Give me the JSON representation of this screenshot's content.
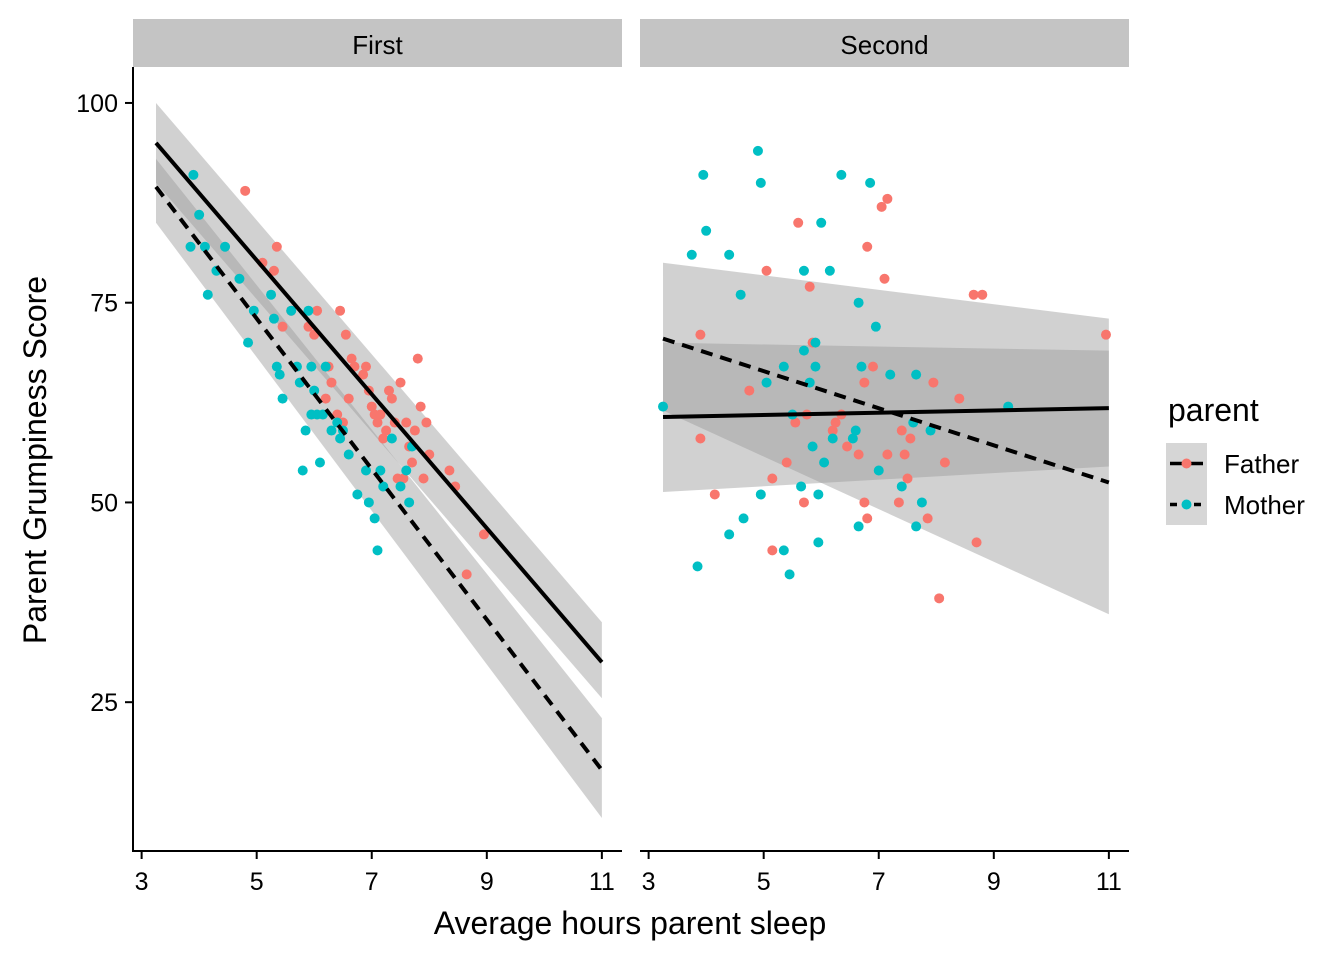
{
  "chart_data": {
    "type": "scatter",
    "xlabel": "Average hours parent sleep",
    "ylabel": "Parent Grumpiness Score",
    "xlim": [
      2.85,
      11.35
    ],
    "ylim": [
      6.5,
      104.5
    ],
    "x_ticks": [
      3,
      5,
      7,
      9,
      11
    ],
    "y_ticks": [
      25,
      50,
      75,
      100
    ],
    "grid": false,
    "legend": {
      "title": "parent",
      "placement": "right",
      "entries": [
        {
          "label": "Father",
          "color": "#F8766D",
          "linetype": "solid"
        },
        {
          "label": "Mother",
          "color": "#00BFC4",
          "linetype": "dashed"
        }
      ]
    },
    "colors": {
      "Father": "#F8766D",
      "Mother": "#00BFC4",
      "line": "#000000",
      "band": "#999999",
      "strip": "#c4c4c4"
    },
    "panels": [
      {
        "label": "First",
        "points": {
          "Father": [
            [
              4.8,
              89
            ],
            [
              5.1,
              80
            ],
            [
              5.3,
              79
            ],
            [
              5.35,
              82
            ],
            [
              5.45,
              72
            ],
            [
              5.6,
              74
            ],
            [
              5.9,
              72
            ],
            [
              6.0,
              71
            ],
            [
              6.05,
              74
            ],
            [
              6.2,
              63
            ],
            [
              6.25,
              67
            ],
            [
              6.3,
              65
            ],
            [
              6.4,
              61
            ],
            [
              6.45,
              74
            ],
            [
              6.5,
              60
            ],
            [
              6.55,
              71
            ],
            [
              6.6,
              63
            ],
            [
              6.65,
              68
            ],
            [
              6.7,
              67
            ],
            [
              6.85,
              66
            ],
            [
              6.9,
              67
            ],
            [
              6.95,
              64
            ],
            [
              7.0,
              62
            ],
            [
              7.05,
              61
            ],
            [
              7.1,
              60
            ],
            [
              7.15,
              61
            ],
            [
              7.2,
              58
            ],
            [
              7.25,
              59
            ],
            [
              7.3,
              64
            ],
            [
              7.35,
              63
            ],
            [
              7.4,
              60
            ],
            [
              7.45,
              53
            ],
            [
              7.5,
              65
            ],
            [
              7.55,
              53
            ],
            [
              7.6,
              60
            ],
            [
              7.65,
              57
            ],
            [
              7.7,
              55
            ],
            [
              7.75,
              59
            ],
            [
              7.8,
              68
            ],
            [
              7.85,
              62
            ],
            [
              7.9,
              53
            ],
            [
              7.95,
              60
            ],
            [
              8.0,
              56
            ],
            [
              8.35,
              54
            ],
            [
              8.45,
              52
            ],
            [
              8.65,
              41
            ],
            [
              8.95,
              46
            ]
          ],
          "Mother": [
            [
              3.85,
              82
            ],
            [
              3.9,
              91
            ],
            [
              4.0,
              86
            ],
            [
              4.1,
              82
            ],
            [
              4.15,
              76
            ],
            [
              4.3,
              79
            ],
            [
              4.45,
              82
            ],
            [
              4.7,
              78
            ],
            [
              4.85,
              70
            ],
            [
              4.95,
              74
            ],
            [
              5.25,
              76
            ],
            [
              5.3,
              73
            ],
            [
              5.35,
              67
            ],
            [
              5.4,
              66
            ],
            [
              5.45,
              63
            ],
            [
              5.6,
              74
            ],
            [
              5.7,
              67
            ],
            [
              5.75,
              65
            ],
            [
              5.85,
              59
            ],
            [
              5.9,
              74
            ],
            [
              5.95,
              61
            ],
            [
              5.95,
              67
            ],
            [
              6.0,
              64
            ],
            [
              6.05,
              61
            ],
            [
              6.1,
              55
            ],
            [
              6.15,
              61
            ],
            [
              6.2,
              67
            ],
            [
              6.3,
              59
            ],
            [
              6.4,
              60
            ],
            [
              6.45,
              58
            ],
            [
              6.5,
              59
            ],
            [
              6.6,
              56
            ],
            [
              6.75,
              51
            ],
            [
              6.9,
              54
            ],
            [
              6.95,
              50
            ],
            [
              7.05,
              48
            ],
            [
              7.1,
              44
            ],
            [
              7.15,
              54
            ],
            [
              7.2,
              52
            ],
            [
              7.35,
              58
            ],
            [
              7.5,
              52
            ],
            [
              7.6,
              54
            ],
            [
              7.65,
              50
            ],
            [
              7.7,
              57
            ],
            [
              5.8,
              54
            ]
          ]
        },
        "fits": {
          "Father": {
            "x": [
              3.25,
              11.0
            ],
            "y": [
              95.0,
              30.0
            ],
            "ci_lower": [
              90.0,
              25.5
            ],
            "ci_upper": [
              100.0,
              35.0
            ]
          },
          "Mother": {
            "x": [
              3.25,
              11.0
            ],
            "y": [
              89.5,
              16.5
            ],
            "ci_lower": [
              85.0,
              10.5
            ],
            "ci_upper": [
              93.0,
              23.0
            ]
          }
        }
      },
      {
        "label": "Second",
        "points": {
          "Father": [
            [
              3.9,
              71
            ],
            [
              3.9,
              58
            ],
            [
              4.15,
              51
            ],
            [
              4.75,
              64
            ],
            [
              5.05,
              79
            ],
            [
              5.15,
              44
            ],
            [
              5.15,
              53
            ],
            [
              5.4,
              55
            ],
            [
              5.55,
              60
            ],
            [
              5.6,
              85
            ],
            [
              5.7,
              50
            ],
            [
              5.75,
              61
            ],
            [
              5.8,
              77
            ],
            [
              5.85,
              70
            ],
            [
              6.2,
              59
            ],
            [
              6.25,
              60
            ],
            [
              6.35,
              61
            ],
            [
              6.45,
              57
            ],
            [
              6.65,
              56
            ],
            [
              6.75,
              65
            ],
            [
              6.75,
              50
            ],
            [
              6.8,
              48
            ],
            [
              6.8,
              82
            ],
            [
              6.9,
              67
            ],
            [
              7.05,
              87
            ],
            [
              7.1,
              78
            ],
            [
              7.15,
              88
            ],
            [
              7.15,
              56
            ],
            [
              7.35,
              50
            ],
            [
              7.4,
              59
            ],
            [
              7.45,
              56
            ],
            [
              7.5,
              53
            ],
            [
              7.55,
              58
            ],
            [
              7.85,
              48
            ],
            [
              7.95,
              65
            ],
            [
              8.05,
              38
            ],
            [
              8.15,
              55
            ],
            [
              8.4,
              63
            ],
            [
              8.65,
              76
            ],
            [
              8.7,
              45
            ],
            [
              8.8,
              76
            ],
            [
              10.95,
              71
            ]
          ],
          "Mother": [
            [
              3.25,
              62
            ],
            [
              3.85,
              42
            ],
            [
              3.95,
              91
            ],
            [
              3.75,
              81
            ],
            [
              4.0,
              84
            ],
            [
              4.4,
              81
            ],
            [
              4.4,
              46
            ],
            [
              4.6,
              76
            ],
            [
              4.65,
              48
            ],
            [
              4.9,
              94
            ],
            [
              4.95,
              90
            ],
            [
              4.95,
              51
            ],
            [
              5.05,
              65
            ],
            [
              5.35,
              67
            ],
            [
              5.35,
              44
            ],
            [
              5.45,
              41
            ],
            [
              5.5,
              61
            ],
            [
              5.65,
              52
            ],
            [
              5.7,
              79
            ],
            [
              5.7,
              69
            ],
            [
              5.8,
              65
            ],
            [
              5.85,
              57
            ],
            [
              5.9,
              70
            ],
            [
              5.9,
              67
            ],
            [
              5.95,
              51
            ],
            [
              5.95,
              45
            ],
            [
              6.0,
              85
            ],
            [
              6.05,
              55
            ],
            [
              6.15,
              79
            ],
            [
              6.2,
              58
            ],
            [
              6.35,
              91
            ],
            [
              6.55,
              58
            ],
            [
              6.6,
              59
            ],
            [
              6.65,
              75
            ],
            [
              6.7,
              67
            ],
            [
              6.65,
              47
            ],
            [
              6.85,
              90
            ],
            [
              6.95,
              72
            ],
            [
              7.0,
              54
            ],
            [
              7.2,
              66
            ],
            [
              7.4,
              52
            ],
            [
              7.6,
              60
            ],
            [
              7.65,
              66
            ],
            [
              7.65,
              47
            ],
            [
              7.75,
              50
            ],
            [
              7.9,
              59
            ],
            [
              9.25,
              62
            ]
          ]
        },
        "fits": {
          "Father": {
            "x": [
              3.25,
              11.0
            ],
            "y": [
              60.7,
              61.8
            ],
            "ci_lower": [
              51.3,
              54.5
            ],
            "ci_upper": [
              70.0,
              69.0
            ]
          },
          "Mother": {
            "x": [
              3.25,
              11.0
            ],
            "y": [
              70.5,
              52.5
            ],
            "ci_lower": [
              61.5,
              36.0
            ],
            "ci_upper": [
              80.0,
              73.0
            ]
          }
        }
      }
    ]
  }
}
